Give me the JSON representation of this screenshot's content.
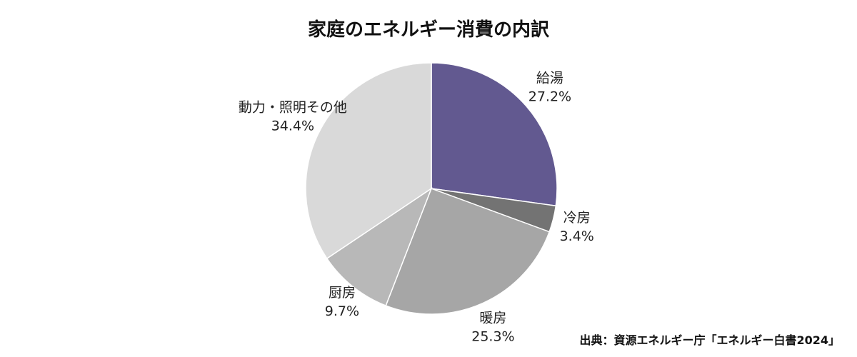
{
  "chart_data": {
    "type": "pie",
    "title": "家庭のエネルギー消費の内訳",
    "slices": [
      {
        "label": "給湯",
        "value": 27.2,
        "value_label": "27.2%",
        "color": "#625990"
      },
      {
        "label": "冷房",
        "value": 3.4,
        "value_label": "3.4%",
        "color": "#737373"
      },
      {
        "label": "暖房",
        "value": 25.3,
        "value_label": "25.3%",
        "color": "#a6a6a6"
      },
      {
        "label": "厨房",
        "value": 9.7,
        "value_label": "9.7%",
        "color": "#b8b8b8"
      },
      {
        "label": "動力・照明その他",
        "value": 34.4,
        "value_label": "34.4%",
        "color": "#d9d9d9"
      }
    ],
    "start": "12 o'clock",
    "direction": "clockwise",
    "legend": "none"
  },
  "source": "出典：資源エネルギー庁「エネルギー白書2024」"
}
